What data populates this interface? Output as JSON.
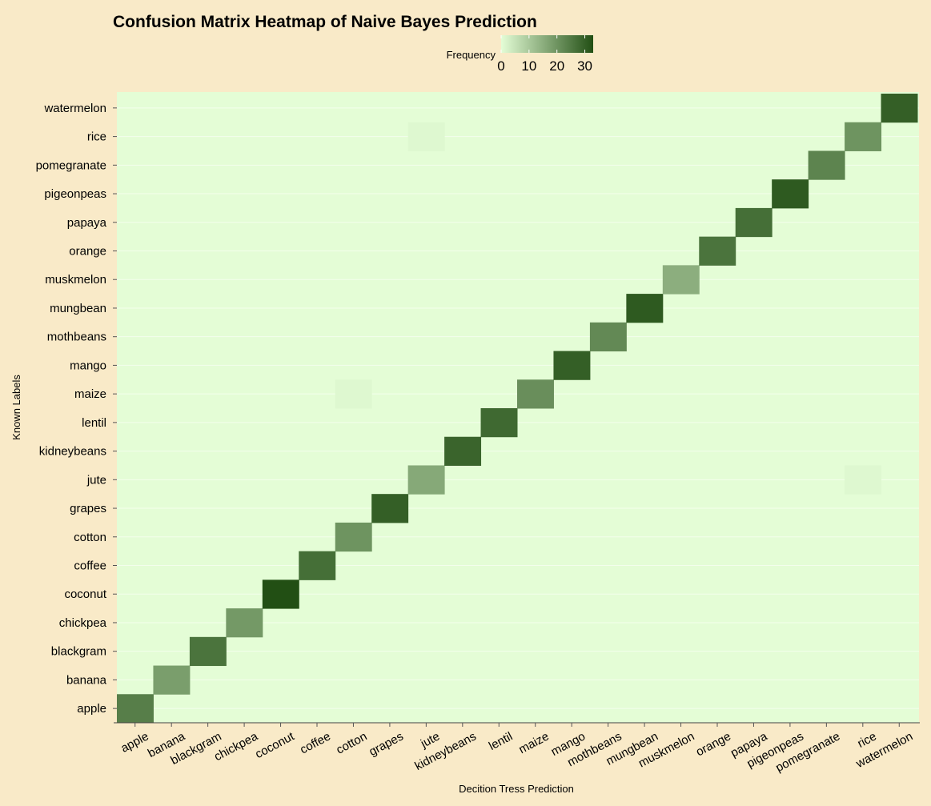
{
  "chart_data": {
    "type": "heatmap",
    "title": "Confusion Matrix Heatmap of Naive Bayes Prediction",
    "xlabel": "Decition Tress Prediction",
    "ylabel": "Known Labels",
    "x_categories": [
      "apple",
      "banana",
      "blackgram",
      "chickpea",
      "coconut",
      "coffee",
      "cotton",
      "grapes",
      "jute",
      "kidneybeans",
      "lentil",
      "maize",
      "mango",
      "mothbeans",
      "mungbean",
      "muskmelon",
      "orange",
      "papaya",
      "pigeonpeas",
      "pomegranate",
      "rice",
      "watermelon"
    ],
    "y_categories": [
      "apple",
      "banana",
      "blackgram",
      "chickpea",
      "coconut",
      "coffee",
      "cotton",
      "grapes",
      "jute",
      "kidneybeans",
      "lentil",
      "maize",
      "mango",
      "mothbeans",
      "mungbean",
      "muskmelon",
      "orange",
      "papaya",
      "pigeonpeas",
      "pomegranate",
      "rice",
      "watermelon"
    ],
    "cells": [
      {
        "known": "apple",
        "predicted": "apple",
        "value": 24
      },
      {
        "known": "banana",
        "predicted": "banana",
        "value": 18
      },
      {
        "known": "blackgram",
        "predicted": "blackgram",
        "value": 26
      },
      {
        "known": "chickpea",
        "predicted": "chickpea",
        "value": 19
      },
      {
        "known": "coconut",
        "predicted": "coconut",
        "value": 33
      },
      {
        "known": "coffee",
        "predicted": "coffee",
        "value": 27
      },
      {
        "known": "cotton",
        "predicted": "cotton",
        "value": 20
      },
      {
        "known": "grapes",
        "predicted": "grapes",
        "value": 30
      },
      {
        "known": "jute",
        "predicted": "jute",
        "value": 16
      },
      {
        "known": "jute",
        "predicted": "rice",
        "value": 1
      },
      {
        "known": "kidneybeans",
        "predicted": "kidneybeans",
        "value": 29
      },
      {
        "known": "lentil",
        "predicted": "lentil",
        "value": 28
      },
      {
        "known": "maize",
        "predicted": "maize",
        "value": 21
      },
      {
        "known": "maize",
        "predicted": "cotton",
        "value": 1
      },
      {
        "known": "mango",
        "predicted": "mango",
        "value": 30
      },
      {
        "known": "mothbeans",
        "predicted": "mothbeans",
        "value": 22
      },
      {
        "known": "mungbean",
        "predicted": "mungbean",
        "value": 31
      },
      {
        "known": "muskmelon",
        "predicted": "muskmelon",
        "value": 15
      },
      {
        "known": "orange",
        "predicted": "orange",
        "value": 26
      },
      {
        "known": "papaya",
        "predicted": "papaya",
        "value": 27
      },
      {
        "known": "pigeonpeas",
        "predicted": "pigeonpeas",
        "value": 31
      },
      {
        "known": "pomegranate",
        "predicted": "pomegranate",
        "value": 23
      },
      {
        "known": "rice",
        "predicted": "rice",
        "value": 20
      },
      {
        "known": "rice",
        "predicted": "jute",
        "value": 1
      },
      {
        "known": "watermelon",
        "predicted": "watermelon",
        "value": 30
      }
    ],
    "legend": {
      "title": "Frequency",
      "position": "top",
      "ticks": [
        0,
        10,
        20,
        30
      ],
      "range": [
        0,
        33
      ],
      "low_color": "#E4FDD6",
      "high_color": "#224F14"
    },
    "colors": {
      "background": "#F9EAC8",
      "panel": "#E4FDD6",
      "grid": "#FFFFFF",
      "axis": "#444444"
    },
    "grid": true
  }
}
